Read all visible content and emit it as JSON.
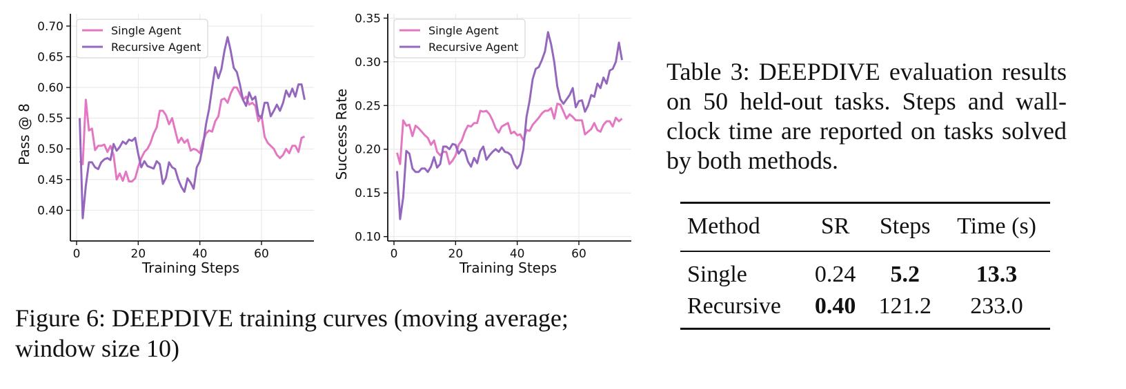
{
  "chart_data": [
    {
      "type": "line",
      "xlabel": "Training Steps",
      "ylabel": "Pass @ 8",
      "xlim": [
        0,
        75
      ],
      "ylim": [
        0.35,
        0.72
      ],
      "xticks": [
        "0",
        "20",
        "40",
        "60"
      ],
      "yticks": [
        "0.40",
        "0.45",
        "0.50",
        "0.55",
        "0.60",
        "0.65",
        "0.70"
      ],
      "grid": true,
      "legend": "top-left",
      "series": [
        {
          "name": "Single Agent",
          "color": "#e377c2",
          "x": [
            1,
            2,
            3,
            4,
            5,
            6,
            7,
            8,
            9,
            10,
            11,
            12,
            13,
            14,
            15,
            16,
            17,
            18,
            19,
            20,
            21,
            22,
            23,
            24,
            25,
            26,
            27,
            28,
            29,
            30,
            31,
            32,
            33,
            34,
            35,
            36,
            37,
            38,
            39,
            40,
            41,
            42,
            43,
            44,
            45,
            46,
            47,
            48,
            49,
            50,
            51,
            52,
            53,
            54,
            55,
            56,
            57,
            58,
            59,
            60,
            61,
            62,
            63,
            64,
            65,
            66,
            67,
            68,
            69,
            70,
            71,
            72,
            73,
            74
          ],
          "y": [
            0.48,
            0.475,
            0.58,
            0.53,
            0.533,
            0.498,
            0.505,
            0.505,
            0.507,
            0.495,
            0.505,
            0.49,
            0.45,
            0.46,
            0.448,
            0.463,
            0.447,
            0.447,
            0.452,
            0.47,
            0.485,
            0.495,
            0.5,
            0.51,
            0.525,
            0.535,
            0.562,
            0.562,
            0.555,
            0.54,
            0.55,
            0.53,
            0.51,
            0.518,
            0.51,
            0.515,
            0.497,
            0.5,
            0.498,
            0.493,
            0.512,
            0.525,
            0.53,
            0.528,
            0.545,
            0.553,
            0.58,
            0.582,
            0.575,
            0.59,
            0.6,
            0.6,
            0.59,
            0.58,
            0.585,
            0.572,
            0.575,
            0.57,
            0.545,
            0.555,
            0.52,
            0.51,
            0.505,
            0.5,
            0.49,
            0.485,
            0.49,
            0.5,
            0.493,
            0.505,
            0.505,
            0.495,
            0.518,
            0.52
          ]
        },
        {
          "name": "Recursive Agent",
          "color": "#9467bd",
          "x": [
            1,
            2,
            3,
            4,
            5,
            6,
            7,
            8,
            9,
            10,
            11,
            12,
            13,
            14,
            15,
            16,
            17,
            18,
            19,
            20,
            21,
            22,
            23,
            24,
            25,
            26,
            27,
            28,
            29,
            30,
            31,
            32,
            33,
            34,
            35,
            36,
            37,
            38,
            39,
            40,
            41,
            42,
            43,
            44,
            45,
            46,
            47,
            48,
            49,
            50,
            51,
            52,
            53,
            54,
            55,
            56,
            57,
            58,
            59,
            60,
            61,
            62,
            63,
            64,
            65,
            66,
            67,
            68,
            69,
            70,
            71,
            72,
            73,
            74
          ],
          "y": [
            0.55,
            0.387,
            0.44,
            0.478,
            0.478,
            0.47,
            0.467,
            0.478,
            0.483,
            0.485,
            0.482,
            0.508,
            0.497,
            0.503,
            0.512,
            0.508,
            0.515,
            0.513,
            0.518,
            0.492,
            0.47,
            0.48,
            0.472,
            0.47,
            0.468,
            0.48,
            0.475,
            0.443,
            0.453,
            0.478,
            0.47,
            0.467,
            0.45,
            0.438,
            0.43,
            0.452,
            0.445,
            0.435,
            0.47,
            0.48,
            0.505,
            0.54,
            0.565,
            0.6,
            0.633,
            0.615,
            0.63,
            0.66,
            0.682,
            0.66,
            0.632,
            0.625,
            0.605,
            0.58,
            0.57,
            0.592,
            0.58,
            0.585,
            0.555,
            0.55,
            0.575,
            0.575,
            0.553,
            0.562,
            0.572,
            0.562,
            0.575,
            0.595,
            0.585,
            0.598,
            0.585,
            0.605,
            0.605,
            0.58
          ]
        }
      ]
    },
    {
      "type": "line",
      "xlabel": "Training Steps",
      "ylabel": "Success Rate",
      "xlim": [
        0,
        75
      ],
      "ylim": [
        0.095,
        0.355
      ],
      "xticks": [
        "0",
        "20",
        "40",
        "60"
      ],
      "yticks": [
        "0.10",
        "0.15",
        "0.20",
        "0.25",
        "0.30",
        "0.35"
      ],
      "grid": true,
      "legend": "top-left",
      "series": [
        {
          "name": "Single Agent",
          "color": "#e377c2",
          "x": [
            1,
            2,
            3,
            4,
            5,
            6,
            7,
            8,
            9,
            10,
            11,
            12,
            13,
            14,
            15,
            16,
            17,
            18,
            19,
            20,
            21,
            22,
            23,
            24,
            25,
            26,
            27,
            28,
            29,
            30,
            31,
            32,
            33,
            34,
            35,
            36,
            37,
            38,
            39,
            40,
            41,
            42,
            43,
            44,
            45,
            46,
            47,
            48,
            49,
            50,
            51,
            52,
            53,
            54,
            55,
            56,
            57,
            58,
            59,
            60,
            61,
            62,
            63,
            64,
            65,
            66,
            67,
            68,
            69,
            70,
            71,
            72,
            73,
            74
          ],
          "y": [
            0.196,
            0.183,
            0.233,
            0.227,
            0.228,
            0.215,
            0.227,
            0.224,
            0.22,
            0.216,
            0.213,
            0.205,
            0.21,
            0.197,
            0.193,
            0.197,
            0.197,
            0.183,
            0.187,
            0.193,
            0.205,
            0.21,
            0.22,
            0.227,
            0.226,
            0.23,
            0.23,
            0.244,
            0.243,
            0.244,
            0.24,
            0.233,
            0.224,
            0.219,
            0.226,
            0.228,
            0.23,
            0.218,
            0.22,
            0.216,
            0.217,
            0.21,
            0.222,
            0.221,
            0.228,
            0.232,
            0.236,
            0.241,
            0.244,
            0.244,
            0.247,
            0.235,
            0.252,
            0.251,
            0.243,
            0.235,
            0.24,
            0.237,
            0.233,
            0.233,
            0.233,
            0.217,
            0.22,
            0.223,
            0.23,
            0.222,
            0.22,
            0.228,
            0.232,
            0.232,
            0.226,
            0.236,
            0.232,
            0.235
          ]
        },
        {
          "name": "Recursive Agent",
          "color": "#9467bd",
          "x": [
            1,
            2,
            3,
            4,
            5,
            6,
            7,
            8,
            9,
            10,
            11,
            12,
            13,
            14,
            15,
            16,
            17,
            18,
            19,
            20,
            21,
            22,
            23,
            24,
            25,
            26,
            27,
            28,
            29,
            30,
            31,
            32,
            33,
            34,
            35,
            36,
            37,
            38,
            39,
            40,
            41,
            42,
            43,
            44,
            45,
            46,
            47,
            48,
            49,
            50,
            51,
            52,
            53,
            54,
            55,
            56,
            57,
            58,
            59,
            60,
            61,
            62,
            63,
            64,
            65,
            66,
            67,
            68,
            69,
            70,
            71,
            72,
            73,
            74
          ],
          "y": [
            0.175,
            0.12,
            0.145,
            0.198,
            0.195,
            0.178,
            0.174,
            0.174,
            0.178,
            0.178,
            0.174,
            0.18,
            0.191,
            0.179,
            0.183,
            0.203,
            0.203,
            0.2,
            0.206,
            0.205,
            0.195,
            0.2,
            0.198,
            0.186,
            0.18,
            0.19,
            0.184,
            0.198,
            0.203,
            0.188,
            0.193,
            0.197,
            0.2,
            0.197,
            0.202,
            0.197,
            0.196,
            0.193,
            0.183,
            0.178,
            0.183,
            0.2,
            0.237,
            0.255,
            0.28,
            0.292,
            0.294,
            0.302,
            0.312,
            0.334,
            0.32,
            0.3,
            0.272,
            0.257,
            0.252,
            0.257,
            0.262,
            0.27,
            0.248,
            0.255,
            0.256,
            0.243,
            0.25,
            0.262,
            0.26,
            0.275,
            0.27,
            0.282,
            0.275,
            0.29,
            0.292,
            0.3,
            0.322,
            0.302
          ]
        }
      ]
    }
  ],
  "figure_caption": {
    "prefix": "Figure 6: ",
    "name_d": "D",
    "name_eep": "EEP",
    "name_d2": "D",
    "name_ive": "IVE",
    "rest": " training curves (moving average; window size 10)"
  },
  "table_caption": {
    "prefix": "Table 3: ",
    "name_d": "D",
    "name_eep": "EEP",
    "name_d2": "D",
    "name_ive": "IVE",
    "rest": " evaluation results on 50 held-out tasks. Steps and wall-clock time are reported on tasks solved by both methods."
  },
  "table": {
    "headers": [
      "Method",
      "SR",
      "Steps",
      "Time (s)"
    ],
    "rows": [
      [
        "Single",
        "0.24",
        "5.2",
        "13.3"
      ],
      [
        "Recursive",
        "0.40",
        "121.2",
        "233.0"
      ]
    ]
  }
}
